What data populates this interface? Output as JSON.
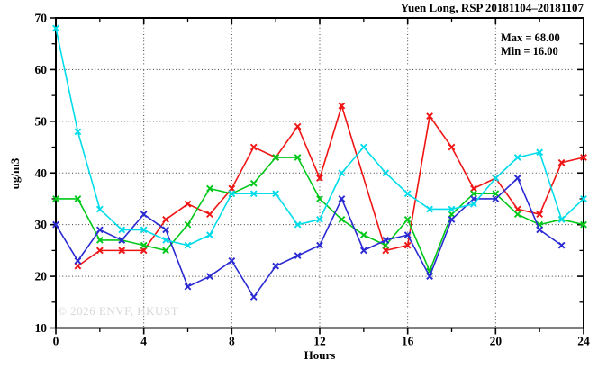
{
  "title": "Yuen Long, RSP 20181104–20181107",
  "stats": {
    "max_label": "Max = 68.00",
    "min_label": "Min = 16.00"
  },
  "watermark": "© 2026 ENVF, HKUST",
  "axes": {
    "ylabel": "ug/m3",
    "xlabel": "Hours"
  },
  "chart_data": {
    "type": "line",
    "title": "Yuen Long, RSP 20181104–20181107",
    "xlabel": "Hours",
    "ylabel": "ug/m3",
    "xlim": [
      0,
      24
    ],
    "ylim": [
      10,
      70
    ],
    "x_major_ticks": [
      0,
      4,
      8,
      12,
      16,
      20,
      24
    ],
    "x_minor_ticks": [
      2,
      6,
      10,
      14,
      18,
      22
    ],
    "y_major_ticks": [
      10,
      20,
      30,
      40,
      50,
      60,
      70
    ],
    "y_minor_ticks": [
      15,
      25,
      35,
      45,
      55,
      65
    ],
    "grid": "dotted, at major ticks",
    "legend_position": "none",
    "annotations": [
      "Max = 68.00",
      "Min = 16.00"
    ],
    "marker": "x",
    "x": [
      0,
      1,
      2,
      3,
      4,
      5,
      6,
      7,
      8,
      9,
      10,
      11,
      12,
      13,
      14,
      15,
      16,
      17,
      18,
      19,
      20,
      21,
      22,
      23,
      24
    ],
    "series": [
      {
        "name": "red",
        "color": "#f01414",
        "values": [
          null,
          22,
          25,
          25,
          25,
          31,
          34,
          32,
          37,
          45,
          43,
          49,
          39,
          53,
          null,
          25,
          26,
          51,
          45,
          37,
          39,
          33,
          32,
          42,
          43
        ]
      },
      {
        "name": "green",
        "color": "#00c818",
        "values": [
          35,
          35,
          27,
          27,
          26,
          25,
          30,
          37,
          36,
          38,
          43,
          43,
          35,
          31,
          28,
          26,
          31,
          21,
          32,
          36,
          36,
          32,
          30,
          31,
          30
        ]
      },
      {
        "name": "blue",
        "color": "#2a2ad4",
        "values": [
          30,
          23,
          29,
          27,
          32,
          29,
          18,
          20,
          23,
          16,
          22,
          24,
          26,
          35,
          25,
          27,
          28,
          20,
          31,
          35,
          35,
          39,
          29,
          26,
          null
        ]
      },
      {
        "name": "cyan",
        "color": "#00dcea",
        "values": [
          68,
          48,
          33,
          29,
          29,
          27,
          26,
          28,
          36,
          36,
          36,
          30,
          31,
          40,
          45,
          40,
          36,
          33,
          33,
          34,
          39,
          43,
          44,
          31,
          35
        ]
      }
    ]
  },
  "colors": {
    "background": "#ffffff",
    "axis": "#000000",
    "grid": "#3c3c3c",
    "watermark": "#d8d8d8"
  }
}
